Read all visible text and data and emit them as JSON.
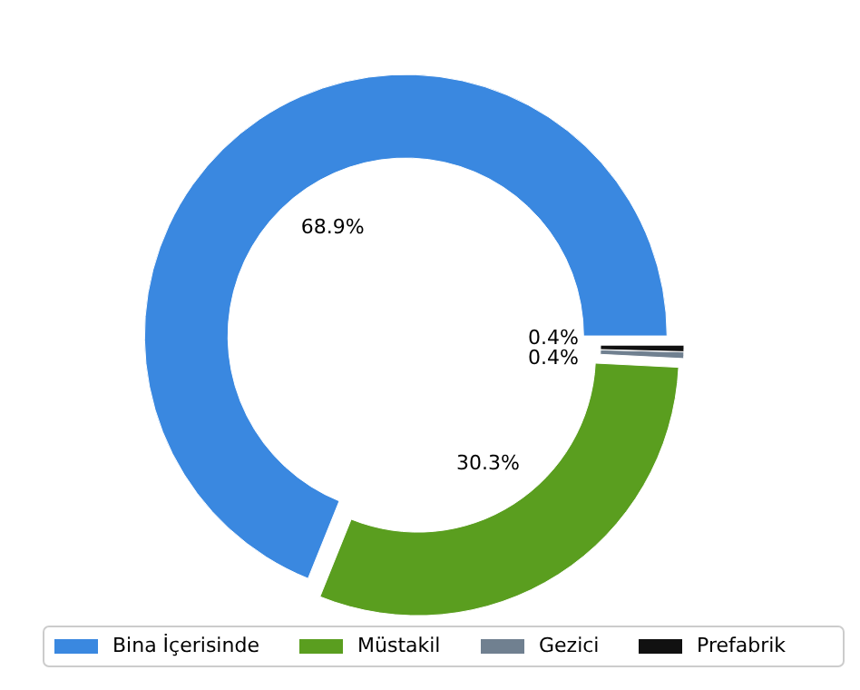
{
  "chart_data": {
    "type": "donut",
    "categories": [
      "Bina İçerisinde",
      "Müstakil",
      "Gezici",
      "Prefabrik"
    ],
    "values": [
      68.9,
      30.3,
      0.4,
      0.4
    ],
    "colors": [
      "#3a88e0",
      "#5a9e1f",
      "#708090",
      "#111111"
    ],
    "value_labels": [
      "68.9%",
      "30.3%",
      "0.4%",
      "0.4%"
    ],
    "legend": "bottom"
  }
}
